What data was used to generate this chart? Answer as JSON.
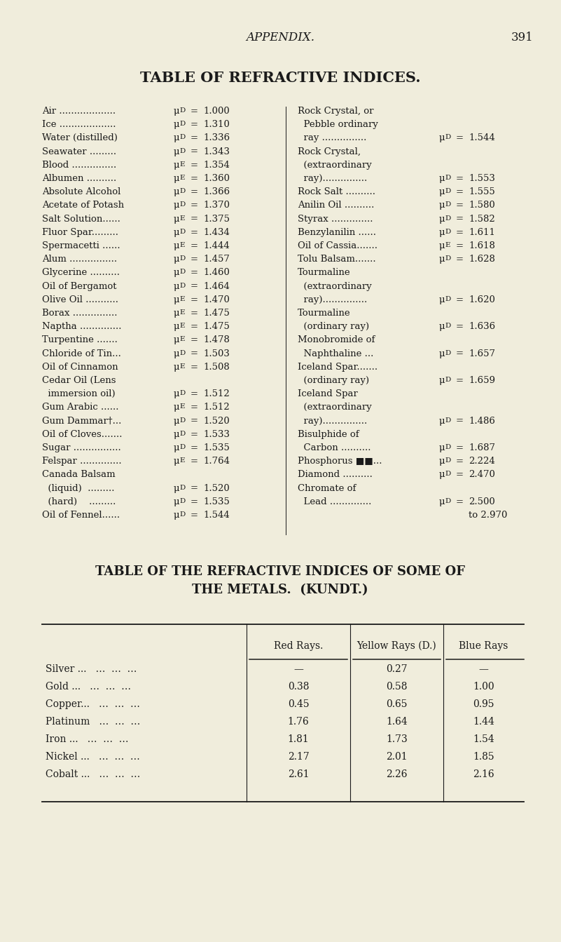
{
  "bg_color": "#f0eddc",
  "text_color": "#1a1a1a",
  "header_text": "APPENDIX.",
  "page_num": "391",
  "title1": "TABLE OF REFRACTIVE INDICES.",
  "title2_line1": "TABLE OF THE REFRACTIVE INDICES OF SOME OF",
  "title2_line2": "THE METALS.  (KUNDT.)",
  "left_col": [
    {
      "name": "Air ...................",
      "sym": "D",
      "val": "1.000"
    },
    {
      "name": "Ice ...................",
      "sym": "D",
      "val": "1.310"
    },
    {
      "name": "Water (distilled)",
      "sym": "D",
      "val": "1.336"
    },
    {
      "name": "Seawater .........",
      "sym": "D",
      "val": "1.343"
    },
    {
      "name": "Blood ...............",
      "sym": "E",
      "val": "1.354"
    },
    {
      "name": "Albumen ..........",
      "sym": "E",
      "val": "1.360"
    },
    {
      "name": "Absolute Alcohol",
      "sym": "D",
      "val": "1.366"
    },
    {
      "name": "Acetate of Potash",
      "sym": "D",
      "val": "1.370"
    },
    {
      "name": "Salt Solution......",
      "sym": "E",
      "val": "1.375"
    },
    {
      "name": "Fluor Spar.........",
      "sym": "D",
      "val": "1.434"
    },
    {
      "name": "Spermacetti ......",
      "sym": "E",
      "val": "1.444"
    },
    {
      "name": "Alum ................",
      "sym": "D",
      "val": "1.457"
    },
    {
      "name": "Glycerine ..........",
      "sym": "D",
      "val": "1.460"
    },
    {
      "name": "Oil of Bergamot",
      "sym": "D",
      "val": "1.464"
    },
    {
      "name": "Olive Oil ...........",
      "sym": "E",
      "val": "1.470"
    },
    {
      "name": "Borax ...............",
      "sym": "E",
      "val": "1.475"
    },
    {
      "name": "Naptha ..............",
      "sym": "E",
      "val": "1.475"
    },
    {
      "name": "Turpentine .......",
      "sym": "E",
      "val": "1.478"
    },
    {
      "name": "Chloride of Tin...",
      "sym": "D",
      "val": "1.503"
    },
    {
      "name": "Oil of Cinnamon",
      "sym": "E",
      "val": "1.508"
    },
    {
      "name": "Cedar Oil (Lens",
      "sym": "",
      "val": ""
    },
    {
      "name": "  immersion oil)",
      "sym": "D",
      "val": "1.512"
    },
    {
      "name": "Gum Arabic ......",
      "sym": "E",
      "val": "1.512"
    },
    {
      "name": "Gum Dammar†...",
      "sym": "D",
      "val": "1.520"
    },
    {
      "name": "Oil of Cloves.......",
      "sym": "D",
      "val": "1.533"
    },
    {
      "name": "Sugar ................",
      "sym": "D",
      "val": "1.535"
    },
    {
      "name": "Felspar ..............",
      "sym": "E",
      "val": "1.764"
    },
    {
      "name": "Canada Balsam",
      "sym": "",
      "val": ""
    },
    {
      "name": "  (liquid)  .........",
      "sym": "D",
      "val": "1.520"
    },
    {
      "name": "  (hard)    .........",
      "sym": "D",
      "val": "1.535"
    },
    {
      "name": "Oil of Fennel......",
      "sym": "D",
      "val": "1.544"
    }
  ],
  "right_col": [
    {
      "name": "Rock Crystal, or",
      "sym": "",
      "val": ""
    },
    {
      "name": "  Pebble ordinary",
      "sym": "",
      "val": ""
    },
    {
      "name": "  ray ...............",
      "sym": "D",
      "val": "1.544"
    },
    {
      "name": "Rock Crystal,",
      "sym": "",
      "val": ""
    },
    {
      "name": "  (extraordinary",
      "sym": "",
      "val": ""
    },
    {
      "name": "  ray)...............",
      "sym": "D",
      "val": "1.553"
    },
    {
      "name": "Rock Salt ..........",
      "sym": "D",
      "val": "1.555"
    },
    {
      "name": "Anilin Oil ..........",
      "sym": "D",
      "val": "1.580"
    },
    {
      "name": "Styrax ..............",
      "sym": "D",
      "val": "1.582"
    },
    {
      "name": "Benzylanilin ......",
      "sym": "D",
      "val": "1.611"
    },
    {
      "name": "Oil of Cassia.......",
      "sym": "E",
      "val": "1.618"
    },
    {
      "name": "Tolu Balsam.......",
      "sym": "D",
      "val": "1.628"
    },
    {
      "name": "Tourmaline",
      "sym": "",
      "val": ""
    },
    {
      "name": "  (extraordinary",
      "sym": "",
      "val": ""
    },
    {
      "name": "  ray)...............",
      "sym": "D",
      "val": "1.620"
    },
    {
      "name": "Tourmaline",
      "sym": "",
      "val": ""
    },
    {
      "name": "  (ordinary ray)",
      "sym": "D",
      "val": "1.636"
    },
    {
      "name": "Monobromide of",
      "sym": "",
      "val": ""
    },
    {
      "name": "  Naphthaline ...",
      "sym": "D",
      "val": "1.657"
    },
    {
      "name": "Iceland Spar.......",
      "sym": "",
      "val": ""
    },
    {
      "name": "  (ordinary ray)",
      "sym": "D",
      "val": "1.659"
    },
    {
      "name": "Iceland Spar",
      "sym": "",
      "val": ""
    },
    {
      "name": "  (extraordinary",
      "sym": "",
      "val": ""
    },
    {
      "name": "  ray)...............",
      "sym": "D",
      "val": "1.486"
    },
    {
      "name": "Bisulphide of",
      "sym": "",
      "val": ""
    },
    {
      "name": "  Carbon ..........",
      "sym": "D",
      "val": "1.687"
    },
    {
      "name": "Phosphorus ■■...",
      "sym": "D",
      "val": "2.224"
    },
    {
      "name": "Diamond ..........",
      "sym": "D",
      "val": "2.470"
    },
    {
      "name": "Chromate of",
      "sym": "",
      "val": ""
    },
    {
      "name": "  Lead ..............",
      "sym": "D",
      "val": "2.500"
    },
    {
      "name": "                    ",
      "sym": "to",
      "val": "2.970"
    }
  ],
  "metals_headers": [
    "Red Rays.",
    "Yellow Rays (D.)",
    "Blue Rays"
  ],
  "metals_rows": [
    {
      "name": "Silver ...",
      "red": "—",
      "yellow": "0.27",
      "blue": "—"
    },
    {
      "name": "Gold ...",
      "red": "0.38",
      "yellow": "0.58",
      "blue": "1.00"
    },
    {
      "name": "Copper...",
      "red": "0.45",
      "yellow": "0.65",
      "blue": "0.95"
    },
    {
      "name": "Platinum",
      "red": "1.76",
      "yellow": "1.64",
      "blue": "1.44"
    },
    {
      "name": "Iron ...",
      "red": "1.81",
      "yellow": "1.73",
      "blue": "1.54"
    },
    {
      "name": "Nickel ...",
      "red": "2.17",
      "yellow": "2.01",
      "blue": "1.85"
    },
    {
      "name": "Cobalt ...",
      "red": "2.61",
      "yellow": "2.26",
      "blue": "2.16"
    }
  ]
}
